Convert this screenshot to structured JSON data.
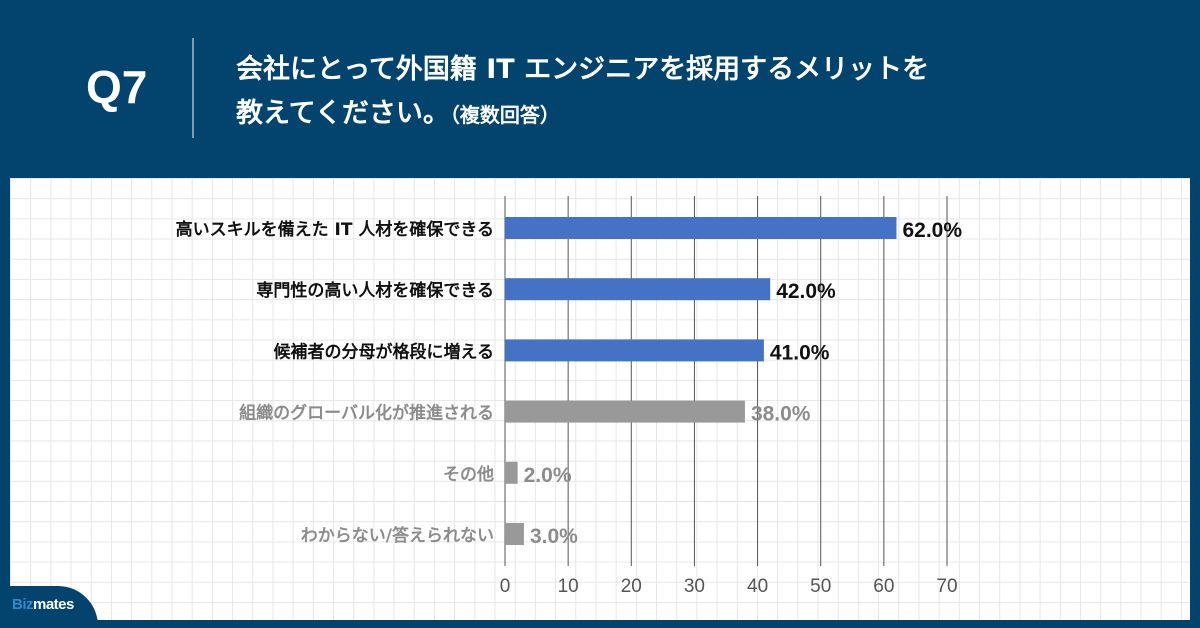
{
  "header": {
    "question_number": "Q7",
    "title_line1": "会社にとって外国籍 IT エンジニアを採用するメリットを",
    "title_line2": "教えてください。",
    "title_note": "（複数回答）"
  },
  "logo": {
    "part1": "Biz",
    "part2": "mates"
  },
  "colors": {
    "header_bg": "#02446d",
    "highlight": "#4472c4",
    "other": "#999999",
    "highlight_label": "#111111",
    "other_label": "#8c8c8c"
  },
  "chart_data": {
    "type": "bar",
    "orientation": "horizontal",
    "title": "会社にとって外国籍 IT エンジニアを採用するメリットを教えてください。（複数回答）",
    "categories": [
      "高いスキルを備えた IT 人材を確保できる",
      "専門性の高い人材を確保できる",
      "候補者の分母が格段に増える",
      "組織のグローバル化が推進される",
      "その他",
      "わからない/答えられない"
    ],
    "values": [
      62.0,
      42.0,
      41.0,
      38.0,
      2.0,
      3.0
    ],
    "value_labels": [
      "62.0%",
      "42.0%",
      "41.0%",
      "38.0%",
      "2.0%",
      "3.0%"
    ],
    "highlighted": [
      true,
      true,
      true,
      false,
      false,
      false
    ],
    "xlim": [
      0,
      70
    ],
    "xticks": [
      0,
      10,
      20,
      30,
      40,
      50,
      60,
      70
    ],
    "xtick_labels": [
      "0",
      "10",
      "20",
      "30",
      "40",
      "50",
      "60",
      "70"
    ],
    "grid": true,
    "xlabel": "",
    "ylabel": ""
  }
}
